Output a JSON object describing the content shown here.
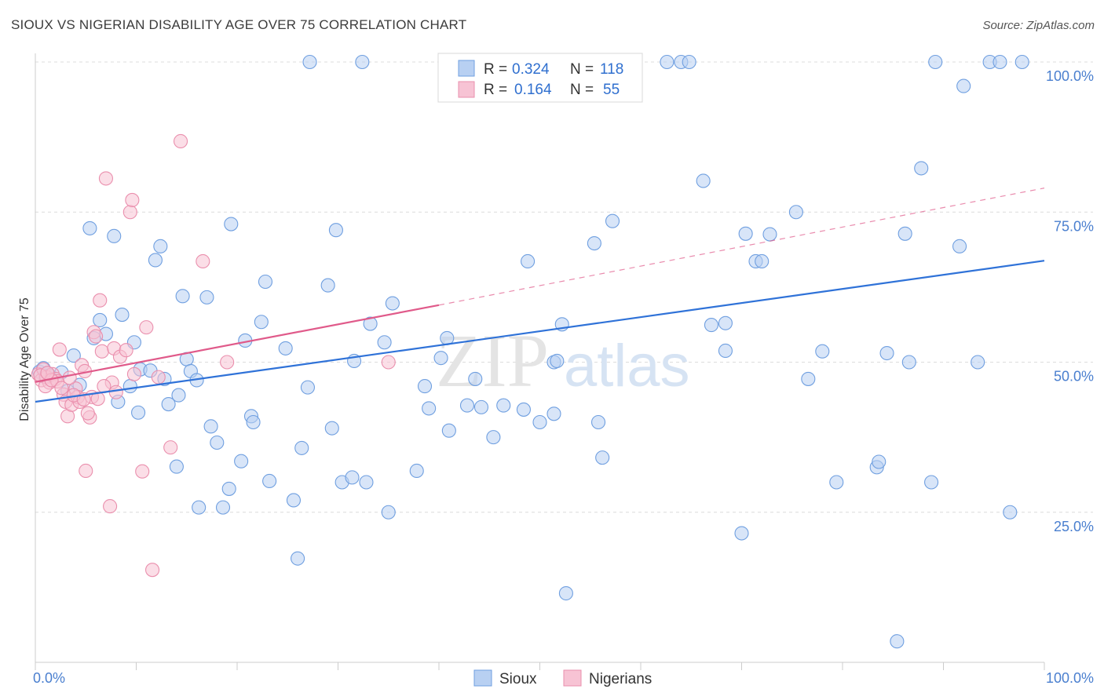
{
  "title": "SIOUX VS NIGERIAN DISABILITY AGE OVER 75 CORRELATION CHART",
  "source": "Source: ZipAtlas.com",
  "watermark": {
    "zip": "ZIP",
    "atlas": "atlas"
  },
  "chart_data": {
    "type": "scatter",
    "title": "SIOUX VS NIGERIAN DISABILITY AGE OVER 75 CORRELATION CHART",
    "xlabel": "",
    "ylabel": "Disability Age Over 75",
    "xlim": [
      0,
      100
    ],
    "ylim": [
      0,
      100
    ],
    "x_tick_labels": {
      "min": "0.0%",
      "max": "100.0%"
    },
    "y_ticks": [
      {
        "value": 25,
        "label": "25.0%"
      },
      {
        "value": 50,
        "label": "50.0%"
      },
      {
        "value": 75,
        "label": "75.0%"
      },
      {
        "value": 100,
        "label": "100.0%"
      }
    ],
    "legend": {
      "placement": "top-center",
      "entries": [
        {
          "r_label": "R =",
          "r_value": "0.324",
          "n_label": "N =",
          "n_value": "118"
        },
        {
          "r_label": "R =",
          "r_value": "0.164",
          "n_label": "N =",
          "n_value": "55"
        }
      ]
    },
    "series": [
      {
        "name": "Sioux",
        "color": "#6f9fe0",
        "fill": "#b8d0f2",
        "line_color": "#2f72d8",
        "trend": {
          "x0": 0,
          "y0": 43.4,
          "x1": 100,
          "y1": 66.9
        },
        "points": [
          [
            0.4,
            48.4
          ],
          [
            0.8,
            49.0
          ],
          [
            1.0,
            47.5
          ],
          [
            1.2,
            48.2
          ],
          [
            1.4,
            47.8
          ],
          [
            2.6,
            48.3
          ],
          [
            3.2,
            45.2
          ],
          [
            3.8,
            51.1
          ],
          [
            4.4,
            46.2
          ],
          [
            5.4,
            72.3
          ],
          [
            5.8,
            54.0
          ],
          [
            6.4,
            57.0
          ],
          [
            7.0,
            54.7
          ],
          [
            7.8,
            71.0
          ],
          [
            8.2,
            43.4
          ],
          [
            8.6,
            57.9
          ],
          [
            9.4,
            46.0
          ],
          [
            9.8,
            53.3
          ],
          [
            10.2,
            41.6
          ],
          [
            10.4,
            48.8
          ],
          [
            11.4,
            48.6
          ],
          [
            11.9,
            67.0
          ],
          [
            12.4,
            69.3
          ],
          [
            12.8,
            47.2
          ],
          [
            13.2,
            43.0
          ],
          [
            14.2,
            44.5
          ],
          [
            14.0,
            32.6
          ],
          [
            14.6,
            61.0
          ],
          [
            15.0,
            50.5
          ],
          [
            15.4,
            48.5
          ],
          [
            16.0,
            47.0
          ],
          [
            16.2,
            25.8
          ],
          [
            17.0,
            60.8
          ],
          [
            17.4,
            39.3
          ],
          [
            18.0,
            36.6
          ],
          [
            18.6,
            25.8
          ],
          [
            19.2,
            28.9
          ],
          [
            19.4,
            73.0
          ],
          [
            20.4,
            33.5
          ],
          [
            20.8,
            53.6
          ],
          [
            21.4,
            41.0
          ],
          [
            21.6,
            40.0
          ],
          [
            22.4,
            56.7
          ],
          [
            22.8,
            63.4
          ],
          [
            23.2,
            30.2
          ],
          [
            24.8,
            52.3
          ],
          [
            25.6,
            27.0
          ],
          [
            26.0,
            17.3
          ],
          [
            26.4,
            35.7
          ],
          [
            27.0,
            45.8
          ],
          [
            27.2,
            100.0
          ],
          [
            29.0,
            62.8
          ],
          [
            29.4,
            39.0
          ],
          [
            29.8,
            72.0
          ],
          [
            30.4,
            30.0
          ],
          [
            31.4,
            30.8
          ],
          [
            31.6,
            50.2
          ],
          [
            32.4,
            100.0
          ],
          [
            32.8,
            30.0
          ],
          [
            33.2,
            56.4
          ],
          [
            34.6,
            53.3
          ],
          [
            35.0,
            25.0
          ],
          [
            35.4,
            59.8
          ],
          [
            37.8,
            31.9
          ],
          [
            38.6,
            46.0
          ],
          [
            39.0,
            42.3
          ],
          [
            40.2,
            50.7
          ],
          [
            40.8,
            54.0
          ],
          [
            41.0,
            38.6
          ],
          [
            42.8,
            42.8
          ],
          [
            43.6,
            47.2
          ],
          [
            44.2,
            42.5
          ],
          [
            45.4,
            37.5
          ],
          [
            46.4,
            42.8
          ],
          [
            48.4,
            42.1
          ],
          [
            48.8,
            66.8
          ],
          [
            50.0,
            40.0
          ],
          [
            51.4,
            50.0
          ],
          [
            51.4,
            41.4
          ],
          [
            51.7,
            50.2
          ],
          [
            52.2,
            56.3
          ],
          [
            52.6,
            11.5
          ],
          [
            55.4,
            69.8
          ],
          [
            55.8,
            40.0
          ],
          [
            56.2,
            34.1
          ],
          [
            57.2,
            73.5
          ],
          [
            62.6,
            100.0
          ],
          [
            64.0,
            100.0
          ],
          [
            64.8,
            100.0
          ],
          [
            66.2,
            80.2
          ],
          [
            67.0,
            56.2
          ],
          [
            68.4,
            56.5
          ],
          [
            68.4,
            51.9
          ],
          [
            70.0,
            21.5
          ],
          [
            70.4,
            71.4
          ],
          [
            71.4,
            66.8
          ],
          [
            72.0,
            66.8
          ],
          [
            72.8,
            71.3
          ],
          [
            75.4,
            75.0
          ],
          [
            76.6,
            47.2
          ],
          [
            78.0,
            51.8
          ],
          [
            79.4,
            30.0
          ],
          [
            83.4,
            32.5
          ],
          [
            83.6,
            33.4
          ],
          [
            84.4,
            51.5
          ],
          [
            85.4,
            3.5
          ],
          [
            86.2,
            71.4
          ],
          [
            86.6,
            50.0
          ],
          [
            87.8,
            82.3
          ],
          [
            88.8,
            30.0
          ],
          [
            89.2,
            100.0
          ],
          [
            91.6,
            69.3
          ],
          [
            92.0,
            96.0
          ],
          [
            93.4,
            50.0
          ],
          [
            94.6,
            100.0
          ],
          [
            95.6,
            100.0
          ],
          [
            96.6,
            25.0
          ],
          [
            97.8,
            100.0
          ]
        ]
      },
      {
        "name": "Nigerians",
        "color": "#ea8fad",
        "fill": "#f7c3d4",
        "line_color": "#e05a8a",
        "trend": {
          "x0": 0,
          "y0": 46.7,
          "x1": 40,
          "y1": 59.5
        },
        "trend_ext": {
          "x0": 40,
          "y0": 59.5,
          "x1": 100,
          "y1": 79.0
        },
        "points": [
          [
            0.3,
            48.0
          ],
          [
            0.6,
            47.0
          ],
          [
            0.8,
            48.8
          ],
          [
            1.1,
            47.5
          ],
          [
            1.4,
            46.6
          ],
          [
            1.7,
            48.0
          ],
          [
            2.0,
            47.2
          ],
          [
            2.4,
            52.1
          ],
          [
            2.8,
            44.6
          ],
          [
            3.0,
            43.4
          ],
          [
            3.2,
            41.0
          ],
          [
            3.6,
            42.9
          ],
          [
            4.0,
            45.6
          ],
          [
            4.2,
            44.2
          ],
          [
            4.4,
            43.4
          ],
          [
            4.6,
            49.5
          ],
          [
            4.9,
            48.5
          ],
          [
            5.0,
            31.9
          ],
          [
            5.4,
            40.8
          ],
          [
            5.6,
            44.2
          ],
          [
            5.8,
            55.0
          ],
          [
            6.0,
            54.3
          ],
          [
            6.4,
            60.3
          ],
          [
            6.6,
            51.8
          ],
          [
            7.0,
            80.6
          ],
          [
            7.4,
            26.0
          ],
          [
            7.6,
            46.6
          ],
          [
            7.8,
            52.3
          ],
          [
            8.4,
            50.9
          ],
          [
            9.0,
            52.0
          ],
          [
            9.4,
            75.0
          ],
          [
            9.6,
            77.0
          ],
          [
            10.6,
            31.8
          ],
          [
            11.0,
            55.8
          ],
          [
            11.6,
            15.4
          ],
          [
            12.2,
            47.5
          ],
          [
            13.4,
            35.8
          ],
          [
            14.4,
            86.8
          ],
          [
            16.6,
            66.8
          ],
          [
            19.0,
            50.0
          ],
          [
            35.0,
            50.0
          ],
          [
            1.0,
            46.0
          ],
          [
            2.2,
            46.8
          ],
          [
            3.8,
            44.5
          ],
          [
            5.2,
            41.5
          ],
          [
            6.8,
            46.0
          ],
          [
            0.5,
            47.8
          ],
          [
            1.6,
            47.0
          ],
          [
            2.6,
            45.7
          ],
          [
            3.4,
            47.4
          ],
          [
            4.8,
            43.8
          ],
          [
            6.2,
            43.9
          ],
          [
            8.0,
            45.0
          ],
          [
            9.8,
            48.0
          ],
          [
            1.2,
            48.2
          ]
        ]
      }
    ],
    "bottom_legend": [
      "Sioux",
      "Nigerians"
    ]
  }
}
